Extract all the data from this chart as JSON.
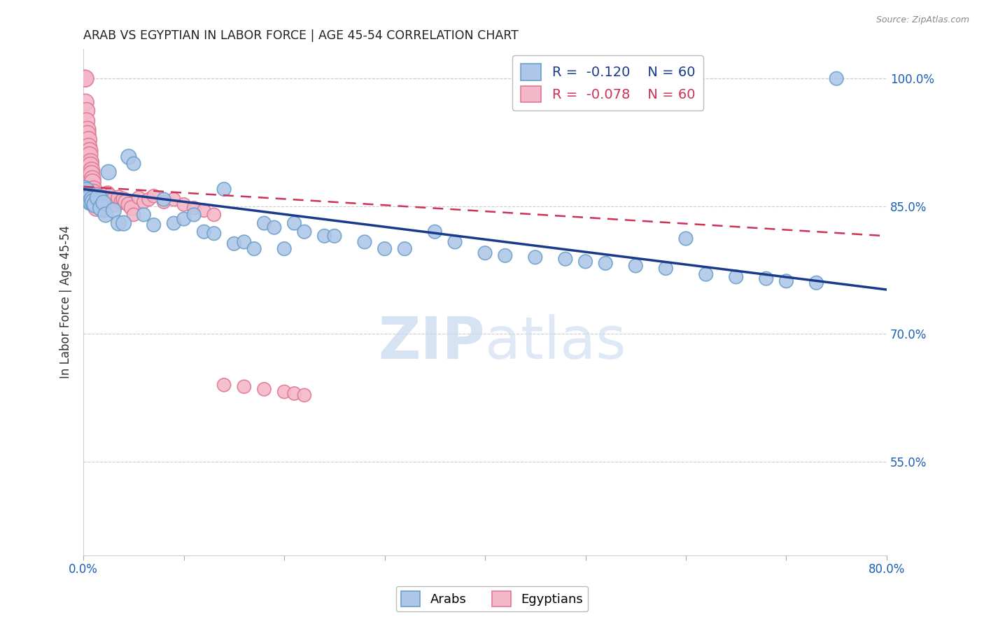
{
  "title": "ARAB VS EGYPTIAN IN LABOR FORCE | AGE 45-54 CORRELATION CHART",
  "source": "Source: ZipAtlas.com",
  "ylabel": "In Labor Force | Age 45-54",
  "xmin": 0.0,
  "xmax": 0.8,
  "ymin": 0.44,
  "ymax": 1.035,
  "yticks": [
    0.55,
    0.7,
    0.85,
    1.0
  ],
  "ytick_labels": [
    "55.0%",
    "70.0%",
    "85.0%",
    "100.0%"
  ],
  "xtick_vals": [
    0.0,
    0.1,
    0.2,
    0.3,
    0.4,
    0.5,
    0.6,
    0.7,
    0.8
  ],
  "xtick_labels": [
    "0.0%",
    "",
    "",
    "",
    "",
    "",
    "",
    "",
    "80.0%"
  ],
  "arab_fill": "#aec6e8",
  "arab_edge": "#6a9fcb",
  "egyptian_fill": "#f4b8c8",
  "egyptian_edge": "#e07898",
  "trend_arab_color": "#1a3a8a",
  "trend_egyptian_color": "#cc3355",
  "background_color": "#ffffff",
  "grid_color": "#cccccc",
  "title_color": "#222222",
  "axis_tick_color": "#1a5fb4",
  "watermark_color": "#c5d8ef",
  "legend_R_color": "#cc3355",
  "legend_N_color": "#1a3a8a",
  "arab_trend_y0": 0.87,
  "arab_trend_y1": 0.752,
  "egyptian_trend_y0": 0.873,
  "egyptian_trend_y1": 0.815,
  "arab_x": [
    0.001,
    0.002,
    0.003,
    0.004,
    0.005,
    0.006,
    0.007,
    0.008,
    0.009,
    0.01,
    0.012,
    0.015,
    0.018,
    0.02,
    0.022,
    0.025,
    0.03,
    0.035,
    0.04,
    0.045,
    0.05,
    0.06,
    0.07,
    0.08,
    0.09,
    0.1,
    0.11,
    0.12,
    0.13,
    0.14,
    0.15,
    0.16,
    0.17,
    0.18,
    0.19,
    0.2,
    0.21,
    0.22,
    0.24,
    0.25,
    0.28,
    0.3,
    0.32,
    0.35,
    0.37,
    0.4,
    0.42,
    0.45,
    0.48,
    0.5,
    0.52,
    0.55,
    0.58,
    0.6,
    0.62,
    0.65,
    0.68,
    0.7,
    0.73,
    0.75
  ],
  "arab_y": [
    0.87,
    0.865,
    0.868,
    0.862,
    0.858,
    0.86,
    0.855,
    0.855,
    0.858,
    0.855,
    0.852,
    0.86,
    0.848,
    0.854,
    0.84,
    0.89,
    0.845,
    0.83,
    0.83,
    0.908,
    0.9,
    0.84,
    0.828,
    0.858,
    0.83,
    0.835,
    0.84,
    0.82,
    0.818,
    0.87,
    0.806,
    0.808,
    0.8,
    0.83,
    0.825,
    0.8,
    0.83,
    0.82,
    0.815,
    0.815,
    0.808,
    0.8,
    0.8,
    0.82,
    0.808,
    0.795,
    0.792,
    0.79,
    0.788,
    0.785,
    0.783,
    0.78,
    0.777,
    0.812,
    0.77,
    0.767,
    0.765,
    0.762,
    0.76,
    1.0
  ],
  "egyptian_x": [
    0.001,
    0.002,
    0.002,
    0.003,
    0.003,
    0.004,
    0.004,
    0.005,
    0.005,
    0.006,
    0.006,
    0.007,
    0.007,
    0.008,
    0.008,
    0.009,
    0.009,
    0.01,
    0.01,
    0.011,
    0.011,
    0.012,
    0.013,
    0.014,
    0.015,
    0.015,
    0.016,
    0.017,
    0.018,
    0.019,
    0.02,
    0.022,
    0.024,
    0.026,
    0.028,
    0.03,
    0.032,
    0.035,
    0.038,
    0.04,
    0.042,
    0.045,
    0.048,
    0.05,
    0.055,
    0.06,
    0.065,
    0.07,
    0.08,
    0.09,
    0.1,
    0.11,
    0.12,
    0.13,
    0.14,
    0.16,
    0.18,
    0.2,
    0.21,
    0.22
  ],
  "egyptian_y": [
    1.0,
    1.0,
    0.972,
    0.962,
    0.95,
    0.94,
    0.935,
    0.928,
    0.92,
    0.915,
    0.91,
    0.902,
    0.898,
    0.892,
    0.888,
    0.882,
    0.878,
    0.87,
    0.866,
    0.862,
    0.858,
    0.852,
    0.848,
    0.862,
    0.856,
    0.855,
    0.858,
    0.855,
    0.852,
    0.848,
    0.845,
    0.855,
    0.865,
    0.862,
    0.855,
    0.858,
    0.852,
    0.86,
    0.855,
    0.858,
    0.855,
    0.852,
    0.848,
    0.84,
    0.86,
    0.855,
    0.858,
    0.862,
    0.855,
    0.858,
    0.852,
    0.848,
    0.845,
    0.84,
    0.64,
    0.638,
    0.635,
    0.632,
    0.63,
    0.628
  ]
}
